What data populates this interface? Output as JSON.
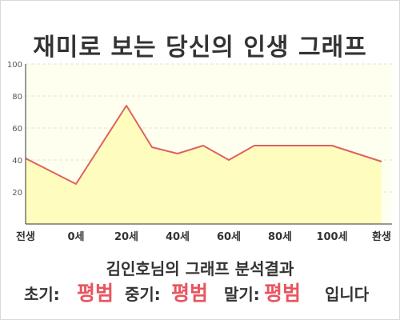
{
  "title": "재미로 보는 당신의 인생 그래프",
  "chart_data": {
    "type": "area",
    "x": [
      "전생",
      "0세",
      "20세",
      "40세",
      "60세",
      "80세",
      "100세",
      "환생"
    ],
    "points": [
      {
        "x": "전생",
        "y": 41
      },
      {
        "x": "0세",
        "y": 25
      },
      {
        "x": "20세",
        "y": 74
      },
      {
        "x": "30세",
        "y": 48
      },
      {
        "x": "40세",
        "y": 44
      },
      {
        "x": "50세",
        "y": 49
      },
      {
        "x": "60세",
        "y": 40
      },
      {
        "x": "70세",
        "y": 49
      },
      {
        "x": "80세",
        "y": 49
      },
      {
        "x": "100세",
        "y": 49
      },
      {
        "x": "환생",
        "y": 39
      }
    ],
    "y_ticks": [
      20,
      40,
      60,
      80,
      100
    ],
    "ylim": [
      0,
      100
    ],
    "grid": true,
    "colors": {
      "line": "#e06060",
      "fill": "#fffdbe",
      "plot_bg": "#fffff0"
    }
  },
  "result": {
    "heading": "김인호님의 그래프 분석결과",
    "early_label": "초기:",
    "early_value": "평범",
    "middle_label": "중기:",
    "middle_value": "평범",
    "late_label": "말기:",
    "late_value": "평범",
    "tail": "입니다"
  }
}
